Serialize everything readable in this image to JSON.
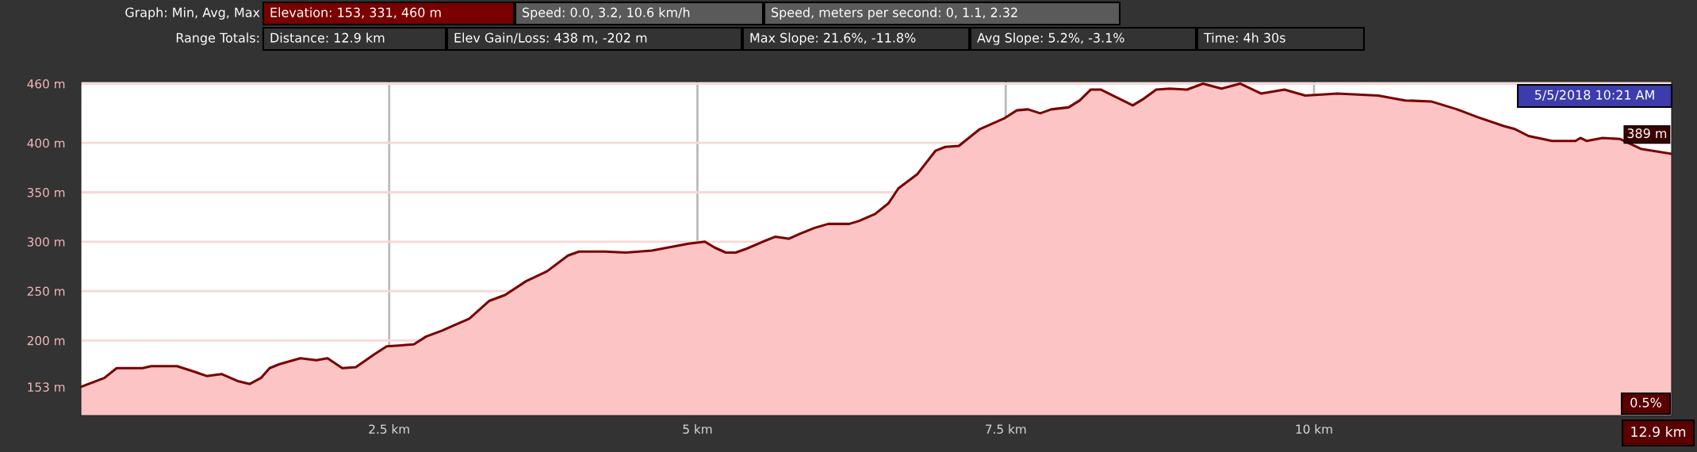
{
  "chart_data": {
    "type": "area",
    "x": [
      0,
      0.19,
      0.29,
      0.5,
      0.57,
      0.78,
      0.93,
      1.02,
      1.14,
      1.27,
      1.37,
      1.46,
      1.53,
      1.61,
      1.78,
      1.91,
      2.0,
      2.12,
      2.23,
      2.38,
      2.48,
      2.7,
      2.8,
      2.93,
      3.02,
      3.15,
      3.31,
      3.44,
      3.61,
      3.78,
      3.95,
      4.04,
      4.25,
      4.42,
      4.63,
      4.8,
      4.93,
      5.06,
      5.14,
      5.23,
      5.31,
      5.4,
      5.53,
      5.63,
      5.74,
      5.83,
      5.95,
      6.06,
      6.23,
      6.31,
      6.44,
      6.55,
      6.63,
      6.78,
      6.93,
      7.01,
      7.12,
      7.29,
      7.49,
      7.59,
      7.68,
      7.78,
      7.87,
      8.01,
      8.1,
      8.19,
      8.27,
      8.4,
      8.53,
      8.61,
      8.72,
      8.83,
      8.97,
      9.1,
      9.25,
      9.4,
      9.57,
      9.76,
      9.93,
      10.19,
      10.52,
      10.74,
      10.95,
      11.16,
      11.33,
      11.54,
      11.63,
      11.74,
      11.93,
      12.12,
      12.16,
      12.21,
      12.34,
      12.48,
      12.65,
      12.9
    ],
    "series": [
      {
        "color": "#7a0000",
        "values": [
          153,
          162,
          172,
          172,
          174,
          174,
          168,
          164,
          166,
          159,
          156,
          162,
          172,
          176,
          182,
          180,
          182,
          172,
          173,
          186,
          194,
          196,
          204,
          210,
          215,
          222,
          240,
          246,
          260,
          270,
          286,
          290,
          290,
          289,
          291,
          295,
          298,
          300,
          294,
          289,
          289,
          293,
          300,
          305,
          303,
          308,
          314,
          318,
          318,
          321,
          328,
          339,
          354,
          368,
          392,
          396,
          397,
          414,
          425,
          433,
          434,
          430,
          434,
          436,
          443,
          454,
          454,
          446,
          438,
          444,
          454,
          455,
          454,
          460,
          455,
          460,
          450,
          454,
          448,
          450,
          448,
          443,
          442,
          434,
          426,
          417,
          414,
          407,
          402,
          402,
          405,
          402,
          405,
          404,
          394,
          389
        ]
      }
    ],
    "xlim": [
      0,
      12.9
    ],
    "xticks": [
      {
        "value": 2.5,
        "label": "2.5 km"
      },
      {
        "value": 5,
        "label": "5 km"
      },
      {
        "value": 7.5,
        "label": "7.5 km"
      },
      {
        "value": 10,
        "label": "10 km"
      }
    ],
    "ylim": [
      124,
      462
    ],
    "yticks": [
      {
        "value": 153,
        "label": "153 m"
      },
      {
        "value": 200,
        "label": "200 m"
      },
      {
        "value": 250,
        "label": "250 m"
      },
      {
        "value": 300,
        "label": "300 m"
      },
      {
        "value": 350,
        "label": "350 m"
      },
      {
        "value": 400,
        "label": "400 m"
      },
      {
        "value": 460,
        "label": "460 m"
      }
    ],
    "grid": true,
    "annotations": [
      "Graph: Min, Avg, Max",
      "Elevation: 153, 331, 460 m",
      "Speed: 0.0, 3.2, 10.6 km/h",
      "Speed, meters per second: 0, 1.1, 2.32",
      "Range Totals:",
      "Distance: 12.9 km",
      "Elev Gain/Loss: 438 m, -202 m",
      "Max Slope: 21.6%, -11.8%",
      "Avg Slope: 5.2%, -3.1%",
      "Time: 4h 30s",
      "5/5/2018 10:21 AM",
      {
        "text": "389 m",
        "x": 12.9,
        "y": 389
      },
      "0.5%",
      "12.9 km"
    ]
  }
}
